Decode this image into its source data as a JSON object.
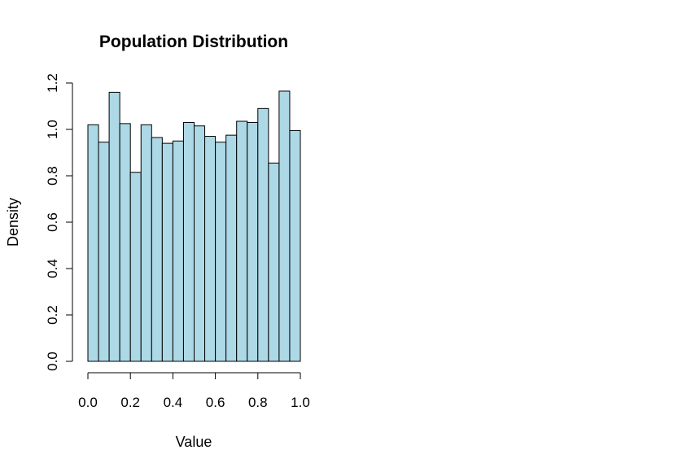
{
  "chart_data": {
    "type": "bar",
    "subtype": "histogram",
    "title": "Population Distribution",
    "xlabel": "Value",
    "ylabel": "Density",
    "bin_edges": [
      0.0,
      0.05,
      0.1,
      0.15,
      0.2,
      0.25,
      0.3,
      0.35,
      0.4,
      0.45,
      0.5,
      0.55,
      0.6,
      0.65,
      0.7,
      0.75,
      0.8,
      0.85,
      0.9,
      0.95,
      1.0
    ],
    "values": [
      1.02,
      0.945,
      1.16,
      1.025,
      0.815,
      1.02,
      0.965,
      0.94,
      0.95,
      1.03,
      1.015,
      0.97,
      0.945,
      0.975,
      1.035,
      1.03,
      1.09,
      0.855,
      1.165,
      0.995
    ],
    "xlim": [
      0.0,
      1.0
    ],
    "ylim": [
      0.0,
      1.2
    ],
    "x_ticks": [
      0.0,
      0.2,
      0.4,
      0.6,
      0.8,
      1.0
    ],
    "x_tick_labels": [
      "0.0",
      "0.2",
      "0.4",
      "0.6",
      "0.8",
      "1.0"
    ],
    "y_ticks": [
      0.0,
      0.2,
      0.4,
      0.6,
      0.8,
      1.0,
      1.2
    ],
    "y_tick_labels": [
      "0.0",
      "0.2",
      "0.4",
      "0.6",
      "0.8",
      "1.0",
      "1.2"
    ],
    "bar_color": "#ADD8E6",
    "border_color": "#000000",
    "grid": false,
    "legend": "none"
  }
}
